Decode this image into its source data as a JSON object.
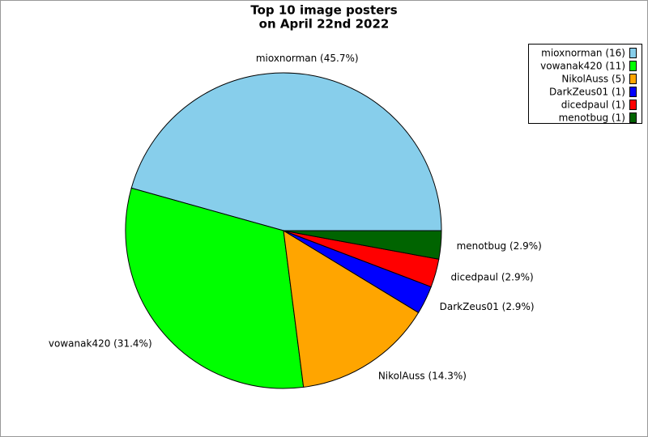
{
  "chart_data": {
    "type": "pie",
    "title": [
      "Top 10 image posters",
      "on April 22nd 2022"
    ],
    "values": [
      45.7,
      31.4,
      14.3,
      2.9,
      2.9,
      2.9
    ],
    "value_labels": [
      "mioxnorman (45.7%)",
      "vowanak420 (31.4%)",
      "NikolAuss (14.3%)",
      "DarkZeus01 (2.9%)",
      "dicedpaul (2.9%)",
      "menotbug (2.9%)"
    ],
    "legend_labels": [
      "mioxnorman (16)",
      "vowanak420 (11)",
      "NikolAuss (5)",
      "DarkZeus01 (1)",
      "dicedpaul (1)",
      "menotbug (1)"
    ],
    "colors": [
      "#87ceeb",
      "#00ff00",
      "#ffa500",
      "#0000ff",
      "#ff0000",
      "#006400"
    ],
    "legend": "upper right"
  }
}
